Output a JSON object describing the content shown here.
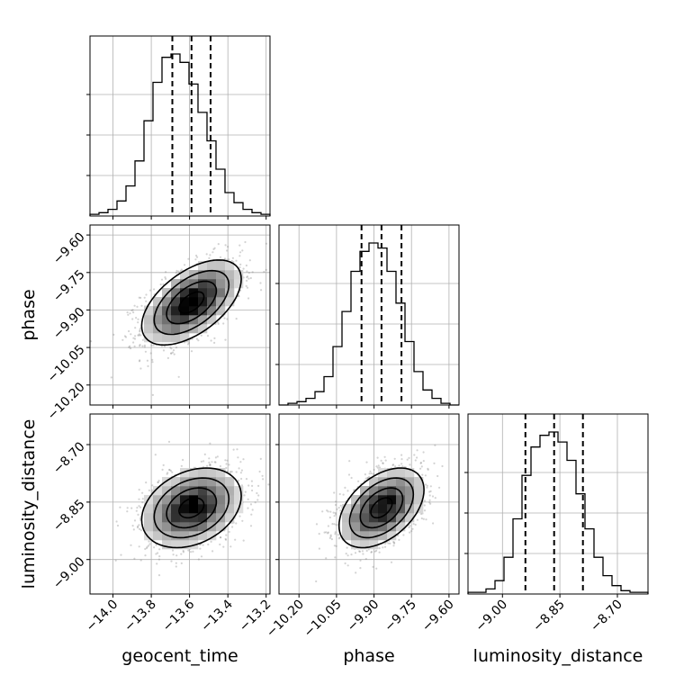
{
  "chart_data": {
    "type": "corner",
    "parameters": [
      "geocent_time",
      "phase",
      "luminosity_distance"
    ],
    "ranges": {
      "geocent_time": [
        -14.12,
        -13.18
      ],
      "phase": [
        -10.28,
        -9.56
      ],
      "luminosity_distance": [
        -9.09,
        -8.62
      ]
    },
    "ticks": {
      "geocent_time": [
        -14.0,
        -13.8,
        -13.6,
        -13.4,
        -13.2
      ],
      "phase": [
        -10.2,
        -10.05,
        -9.9,
        -9.75,
        -9.6
      ],
      "luminosity_distance": [
        -9.0,
        -8.85,
        -8.7
      ]
    },
    "tick_labels": {
      "geocent_time": [
        "−14.0",
        "−13.8",
        "−13.6",
        "−13.4",
        "−13.2"
      ],
      "phase": [
        "−10.20",
        "−10.05",
        "−9.90",
        "−9.75",
        "−9.60"
      ],
      "luminosity_distance": [
        "−9.00",
        "−8.85",
        "−8.70"
      ]
    },
    "quantiles": {
      "geocent_time": [
        -13.69,
        -13.59,
        -13.49
      ],
      "phase": [
        -9.95,
        -9.87,
        -9.79
      ],
      "luminosity_distance": [
        -8.94,
        -8.865,
        -8.79
      ]
    },
    "histograms": {
      "geocent_time": {
        "edges": [
          -14.12,
          -14.073,
          -14.026,
          -13.979,
          -13.932,
          -13.885,
          -13.838,
          -13.791,
          -13.744,
          -13.697,
          -13.65,
          -13.603,
          -13.556,
          -13.509,
          -13.462,
          -13.415,
          -13.368,
          -13.321,
          -13.274,
          -13.227,
          -13.18
        ],
        "counts": [
          1,
          2,
          4,
          9,
          18,
          33,
          57,
          80,
          95,
          97,
          92,
          79,
          62,
          45,
          28,
          14,
          8,
          4,
          2,
          1
        ]
      },
      "phase": {
        "edges": [
          -10.28,
          -10.244,
          -10.208,
          -10.172,
          -10.136,
          -10.1,
          -10.064,
          -10.028,
          -9.992,
          -9.956,
          -9.92,
          -9.884,
          -9.848,
          -9.812,
          -9.776,
          -9.74,
          -9.704,
          -9.668,
          -9.632,
          -9.596,
          -9.56
        ],
        "counts": [
          0,
          1,
          2,
          4,
          8,
          17,
          35,
          56,
          80,
          92,
          97,
          94,
          80,
          61,
          38,
          20,
          9,
          4,
          1,
          0
        ]
      },
      "luminosity_distance": {
        "edges": [
          -9.09,
          -9.0665,
          -9.043,
          -9.0195,
          -8.996,
          -8.9725,
          -8.949,
          -8.9255,
          -8.902,
          -8.8785,
          -8.855,
          -8.8315,
          -8.808,
          -8.7845,
          -8.761,
          -8.7375,
          -8.714,
          -8.6905,
          -8.667,
          -8.6435,
          -8.62
        ],
        "counts": [
          1,
          1,
          3,
          8,
          22,
          45,
          71,
          88,
          95,
          97,
          91,
          80,
          60,
          39,
          22,
          11,
          5,
          2,
          1,
          1
        ]
      }
    },
    "pairs": [
      {
        "x": "geocent_time",
        "y": "phase",
        "mean": [
          -13.59,
          -9.87
        ],
        "sd": [
          0.13,
          0.085
        ],
        "rho": 0.55
      },
      {
        "x": "geocent_time",
        "y": "luminosity_distance",
        "mean": [
          -13.59,
          -8.865
        ],
        "sd": [
          0.13,
          0.052
        ],
        "rho": 0.3
      },
      {
        "x": "phase",
        "y": "luminosity_distance",
        "mean": [
          -9.87,
          -8.865
        ],
        "sd": [
          0.085,
          0.052
        ],
        "rho": 0.45
      }
    ],
    "contour_levels_sigma": [
      0.5,
      1.0,
      1.5,
      2.0
    ],
    "grid": true,
    "colors": {
      "line": "#000000",
      "grid": "#b0b0b0",
      "points": "#808080"
    }
  }
}
